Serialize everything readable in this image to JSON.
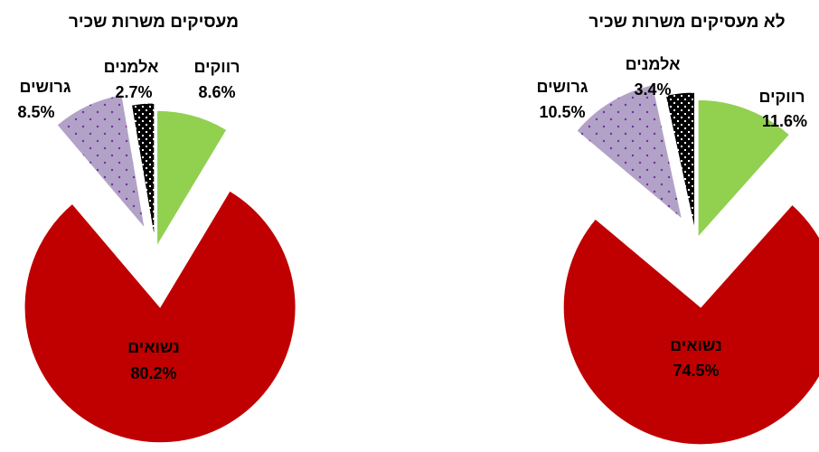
{
  "chart_data": [
    {
      "type": "pie",
      "title": "מעסיקים משרות שכיר",
      "categories": [
        "רווקים",
        "נשואים",
        "גרושים",
        "אלמנים"
      ],
      "values": [
        8.6,
        80.2,
        8.5,
        2.7
      ],
      "value_labels": [
        "8.6%",
        "80.2%",
        "8.5%",
        "2.7%"
      ],
      "colors": [
        "#92d050",
        "#c00000",
        "#b3a2c7",
        "#000000"
      ]
    },
    {
      "type": "pie",
      "title": "לא מעסיקים משרות שכיר",
      "categories": [
        "רווקים",
        "נשואים",
        "גרושים",
        "אלמנים"
      ],
      "values": [
        11.6,
        74.5,
        10.5,
        3.4
      ],
      "value_labels": [
        "11.6%",
        "74.5%",
        "10.5%",
        "3.4%"
      ],
      "colors": [
        "#92d050",
        "#c00000",
        "#b3a2c7",
        "#000000"
      ]
    }
  ]
}
